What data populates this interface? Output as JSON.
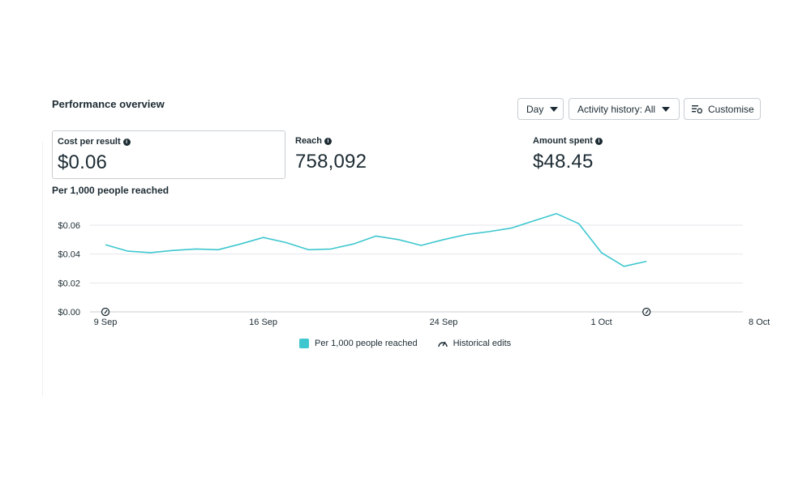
{
  "header": {
    "title": "Performance overview",
    "day_label": "Day",
    "activity_label": "Activity history: All",
    "customise_label": "Customise"
  },
  "metrics": {
    "cost": {
      "label": "Cost per result",
      "value": "$0.06"
    },
    "reach": {
      "label": "Reach",
      "value": "758,092"
    },
    "spent": {
      "label": "Amount spent",
      "value": "$48.45"
    }
  },
  "chart_title": "Per 1,000 people reached",
  "legend": {
    "series_label": "Per 1,000 people reached",
    "edits_label": "Historical edits"
  },
  "colors": {
    "line": "#3ec7cf",
    "grid": "#e4e6eb",
    "text": "#1c2b33"
  },
  "chart_data": {
    "type": "line",
    "title": "Per 1,000 people reached",
    "x_ticks": [
      "9 Sep",
      "16 Sep",
      "24 Sep",
      "1 Oct",
      "8 Oct"
    ],
    "y_ticks": [
      "$0.00",
      "$0.02",
      "$0.04",
      "$0.06"
    ],
    "ylim": [
      0,
      0.06
    ],
    "x": [
      "9 Sep",
      "10 Sep",
      "11 Sep",
      "12 Sep",
      "13 Sep",
      "14 Sep",
      "15 Sep",
      "16 Sep",
      "17 Sep",
      "18 Sep",
      "19 Sep",
      "20 Sep",
      "21 Sep",
      "22 Sep",
      "23 Sep",
      "24 Sep",
      "25 Sep",
      "26 Sep",
      "27 Sep",
      "28 Sep",
      "29 Sep",
      "30 Sep",
      "1 Oct",
      "2 Oct",
      "3 Oct"
    ],
    "series": [
      {
        "name": "Per 1,000 people reached",
        "values": [
          0.0465,
          0.042,
          0.041,
          0.0425,
          0.0435,
          0.043,
          0.047,
          0.0515,
          0.048,
          0.043,
          0.0435,
          0.047,
          0.0525,
          0.05,
          0.046,
          0.05,
          0.0535,
          0.0555,
          0.058,
          0.063,
          0.068,
          0.061,
          0.041,
          0.0315,
          0.035
        ]
      }
    ],
    "historical_edits": [
      "9 Sep",
      "3 Oct"
    ],
    "grid": true,
    "legend_position": "bottom-center"
  }
}
